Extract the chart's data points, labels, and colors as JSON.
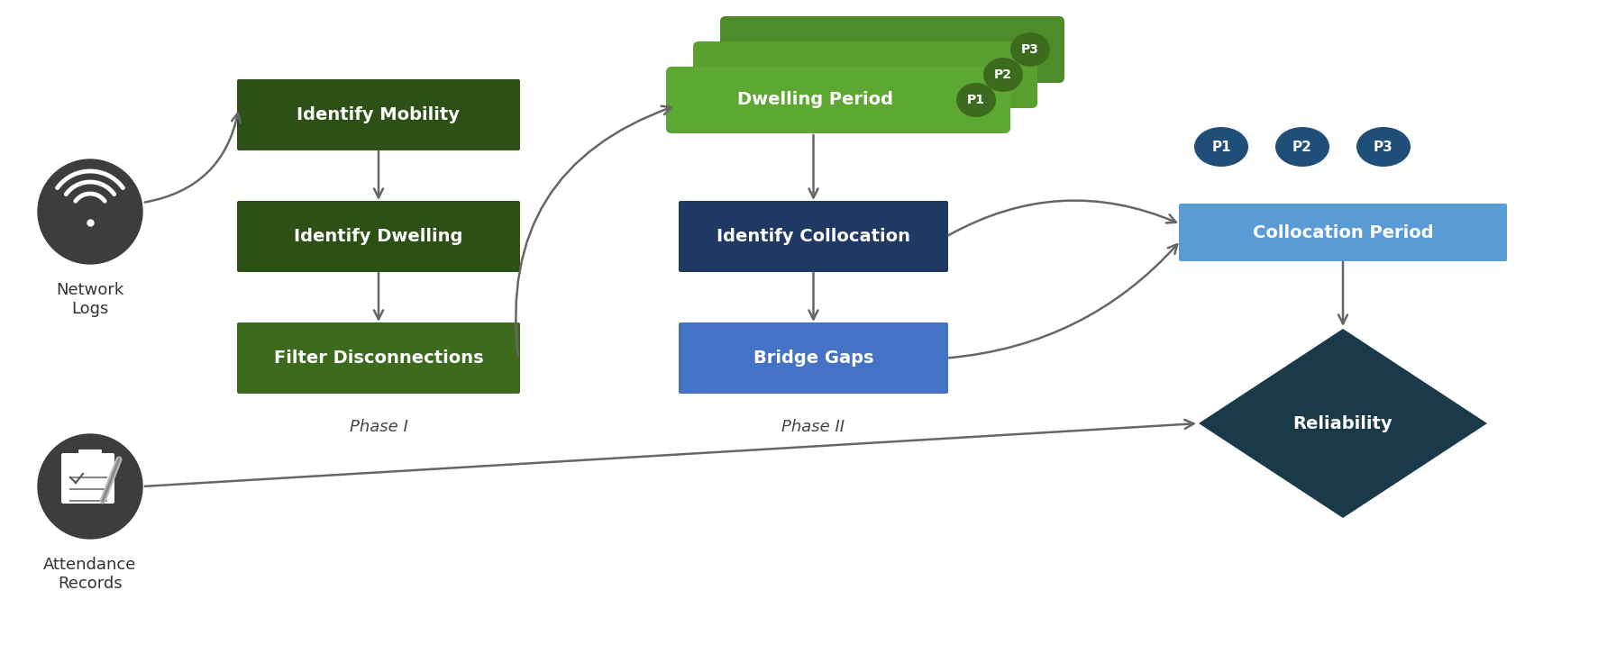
{
  "bg_color": "#ffffff",
  "dark_green": "#2d5016",
  "mid_green": "#3d6b1e",
  "light_green": "#4e8c2a",
  "brighter_green": "#5da832",
  "dark_blue": "#1f3864",
  "light_blue": "#4472c4",
  "steel_blue": "#5b9bd5",
  "teal_dark": "#1a3a4a",
  "circle_dark": "#3d3d3d",
  "person_blue": "#1f4e79",
  "collocation_blue": "#5b9bd5",
  "phase1_label": "Phase I",
  "phase2_label": "Phase II",
  "box1_text": "Identify Mobility",
  "box2_text": "Identify Dwelling",
  "box3_text": "Filter Disconnections",
  "box4_text": "Dwelling Period",
  "box5_text": "Identify Collocation",
  "box6_text": "Bridge Gaps",
  "box7_text": "Collocation Period",
  "box8_text": "Reliability",
  "label1": "Network\nLogs",
  "label2": "Attendance\nRecords",
  "p_labels": [
    "P1",
    "P2",
    "P3"
  ],
  "arrow_color": "#666666"
}
